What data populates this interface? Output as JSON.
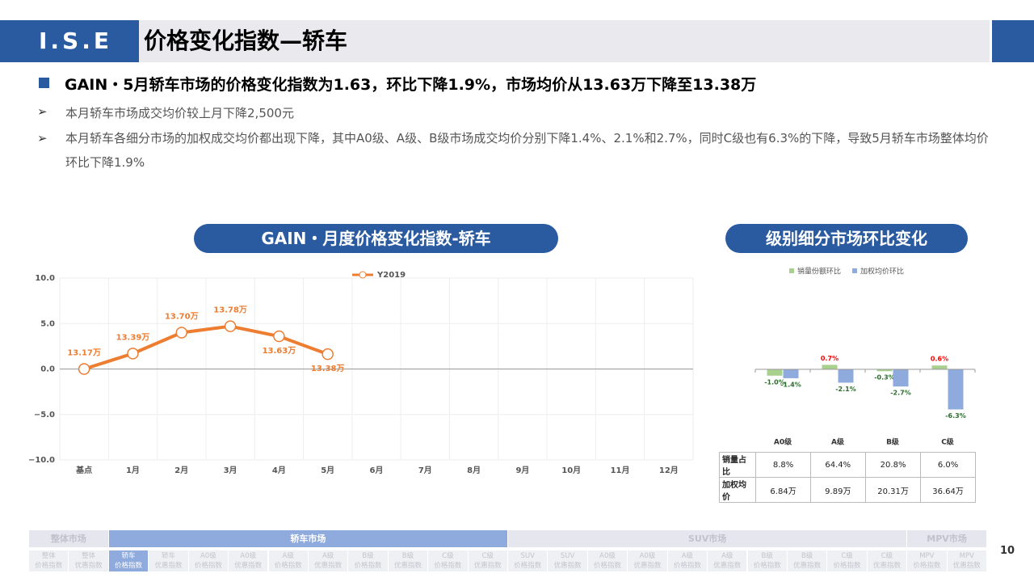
{
  "header": {
    "logo": "I.S.E",
    "title": "价格变化指数—轿车"
  },
  "summary": {
    "headline": "GAIN・5月轿车市场的价格变化指数为1.63，环比下降1.9%，市场均价从13.63万下降至13.38万",
    "points": [
      "本月轿车市场成交均价较上月下降2,500元",
      "本月轿车各细分市场的加权成交均价都出现下降，其中A0级、A级、B级市场成交均价分别下降1.4%、2.1%和2.7%，同时C级也有6.3%的下降，导致5月轿车市场整体均价环比下降1.9%"
    ]
  },
  "chart_data": [
    {
      "type": "line",
      "title": "GAIN・月度价格变化指数-轿车",
      "categories": [
        "基点",
        "1月",
        "2月",
        "3月",
        "4月",
        "5月",
        "6月",
        "7月",
        "8月",
        "9月",
        "10月",
        "11月",
        "12月"
      ],
      "series": [
        {
          "name": "Y2019",
          "color": "#ED7D31",
          "values": [
            0,
            1.7,
            4.0,
            4.7,
            3.6,
            1.63,
            null,
            null,
            null,
            null,
            null,
            null,
            null
          ],
          "point_labels": [
            "13.17万",
            "13.39万",
            "13.70万",
            "13.78万",
            "13.63万",
            "13.38万",
            null,
            null,
            null,
            null,
            null,
            null,
            null
          ]
        }
      ],
      "ylim": [
        -10,
        10
      ],
      "yticks": [
        {
          "value": -10,
          "label": "−10.0"
        },
        {
          "value": -5,
          "label": "−5.0"
        },
        {
          "value": 0,
          "label": "0.0"
        },
        {
          "value": 5,
          "label": "5.0"
        },
        {
          "value": 10,
          "label": "10.0"
        }
      ],
      "grid": true,
      "legend": "top"
    },
    {
      "type": "bar",
      "title": "级别细分市场环比变化",
      "categories": [
        "A0级",
        "A级",
        "B级",
        "C级"
      ],
      "series": [
        {
          "name": "销量份额环比",
          "color": "#A9D18E",
          "values": [
            -1.0,
            0.7,
            -0.3,
            0.6
          ],
          "value_labels": [
            "-1.0%",
            "0.7%",
            "-0.3%",
            "0.6%"
          ]
        },
        {
          "name": "加权均价环比",
          "color": "#8FAADC",
          "values": [
            -1.4,
            -2.1,
            -2.7,
            -6.3
          ],
          "value_labels": [
            "-1.4%",
            "-2.1%",
            "-2.7%",
            "-6.3%"
          ]
        }
      ],
      "ylim": [
        -7,
        1
      ],
      "legend": "top"
    }
  ],
  "table": {
    "rows": [
      [
        "销量占比",
        "8.8%",
        "64.4%",
        "20.8%",
        "6.0%"
      ],
      [
        "加权均价",
        "6.84万",
        "9.89万",
        "20.31万",
        "36.64万"
      ]
    ]
  },
  "nav": {
    "active_group": 1,
    "active_item": 0,
    "groups": [
      {
        "name": "整体市场",
        "items": [
          [
            "整体",
            "价格指数"
          ],
          [
            "整体",
            "优惠指数"
          ]
        ]
      },
      {
        "name": "轿车市场",
        "items": [
          [
            "轿车",
            "价格指数"
          ],
          [
            "轿车",
            "优惠指数"
          ],
          [
            "A0级",
            "价格指数"
          ],
          [
            "A0级",
            "优惠指数"
          ],
          [
            "A级",
            "价格指数"
          ],
          [
            "A级",
            "优惠指数"
          ],
          [
            "B级",
            "价格指数"
          ],
          [
            "B级",
            "优惠指数"
          ],
          [
            "C级",
            "价格指数"
          ],
          [
            "C级",
            "优惠指数"
          ]
        ]
      },
      {
        "name": "SUV市场",
        "items": [
          [
            "SUV",
            "价格指数"
          ],
          [
            "SUV",
            "优惠指数"
          ],
          [
            "A0级",
            "价格指数"
          ],
          [
            "A0级",
            "优惠指数"
          ],
          [
            "A级",
            "价格指数"
          ],
          [
            "A级",
            "优惠指数"
          ],
          [
            "B级",
            "价格指数"
          ],
          [
            "B级",
            "优惠指数"
          ],
          [
            "C级",
            "价格指数"
          ],
          [
            "C级",
            "优惠指数"
          ]
        ]
      },
      {
        "name": "MPV市场",
        "items": [
          [
            "MPV",
            "价格指数"
          ],
          [
            "MPV",
            "优惠指数"
          ]
        ]
      }
    ]
  },
  "page_number": "10"
}
